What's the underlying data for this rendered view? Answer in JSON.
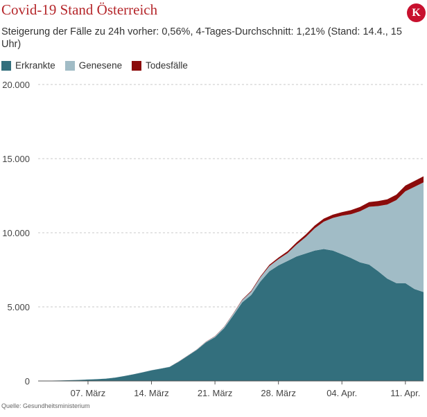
{
  "header": {
    "title": "Covid-19 Stand Österreich",
    "subtitle": "Steigerung der Fälle zu 24h vorher: 0,56%, 4-Tages-Durchschnitt: 1,21% (Stand: 14.4., 15 Uhr)",
    "logo_letter": "K"
  },
  "source": "Quelle: Gesundheitsministerium",
  "colors": {
    "erkrankte": "#336f7d",
    "genesene": "#a1bcc6",
    "todesfaelle": "#8b0b0b"
  },
  "chart_data": {
    "type": "area",
    "stacked": true,
    "grid": "horizontal-dashed",
    "legend_position": "top-left",
    "ylim": [
      0,
      20000
    ],
    "y_ticks": [
      0,
      5000,
      10000,
      15000,
      20000
    ],
    "y_tick_labels": [
      "0",
      "5.000",
      "10.000",
      "15.000",
      "20.000"
    ],
    "x_ticks": [
      {
        "day": 7,
        "label": "07. März"
      },
      {
        "day": 14,
        "label": "14. März"
      },
      {
        "day": 21,
        "label": "21. März"
      },
      {
        "day": 28,
        "label": "28. März"
      },
      {
        "day": 35,
        "label": "04. Apr."
      },
      {
        "day": 42,
        "label": "11. Apr."
      }
    ],
    "x": [
      2,
      3,
      4,
      5,
      6,
      7,
      8,
      9,
      10,
      11,
      12,
      13,
      14,
      15,
      16,
      17,
      18,
      19,
      20,
      21,
      22,
      23,
      24,
      25,
      26,
      27,
      28,
      29,
      30,
      31,
      32,
      33,
      34,
      35,
      36,
      37,
      38,
      39,
      40,
      41,
      42,
      43,
      44
    ],
    "series": [
      {
        "name": "Erkrankte",
        "values": [
          20,
          25,
          35,
          50,
          70,
          100,
          120,
          160,
          230,
          330,
          450,
          580,
          720,
          830,
          950,
          1300,
          1700,
          2100,
          2600,
          2950,
          3550,
          4400,
          5300,
          5800,
          6700,
          7400,
          7800,
          8100,
          8400,
          8600,
          8800,
          8900,
          8800,
          8550,
          8300,
          8000,
          7850,
          7400,
          6900,
          6600,
          6600,
          6200,
          6000
        ]
      },
      {
        "name": "Genesene",
        "values": [
          0,
          0,
          0,
          0,
          0,
          2,
          3,
          4,
          5,
          6,
          7,
          8,
          9,
          10,
          12,
          14,
          20,
          25,
          40,
          60,
          90,
          120,
          150,
          230,
          280,
          350,
          420,
          520,
          800,
          1100,
          1500,
          1850,
          2200,
          2600,
          2950,
          3450,
          3900,
          4400,
          5000,
          5600,
          6200,
          6900,
          7400
        ]
      },
      {
        "name": "Todesfälle",
        "values": [
          0,
          0,
          0,
          0,
          0,
          0,
          0,
          0,
          0,
          0,
          0,
          1,
          1,
          1,
          2,
          3,
          5,
          6,
          10,
          16,
          21,
          28,
          40,
          58,
          68,
          86,
          102,
          128,
          146,
          168,
          186,
          204,
          220,
          243,
          273,
          295,
          319,
          337,
          350,
          368,
          384,
          393,
          410
        ]
      }
    ]
  }
}
